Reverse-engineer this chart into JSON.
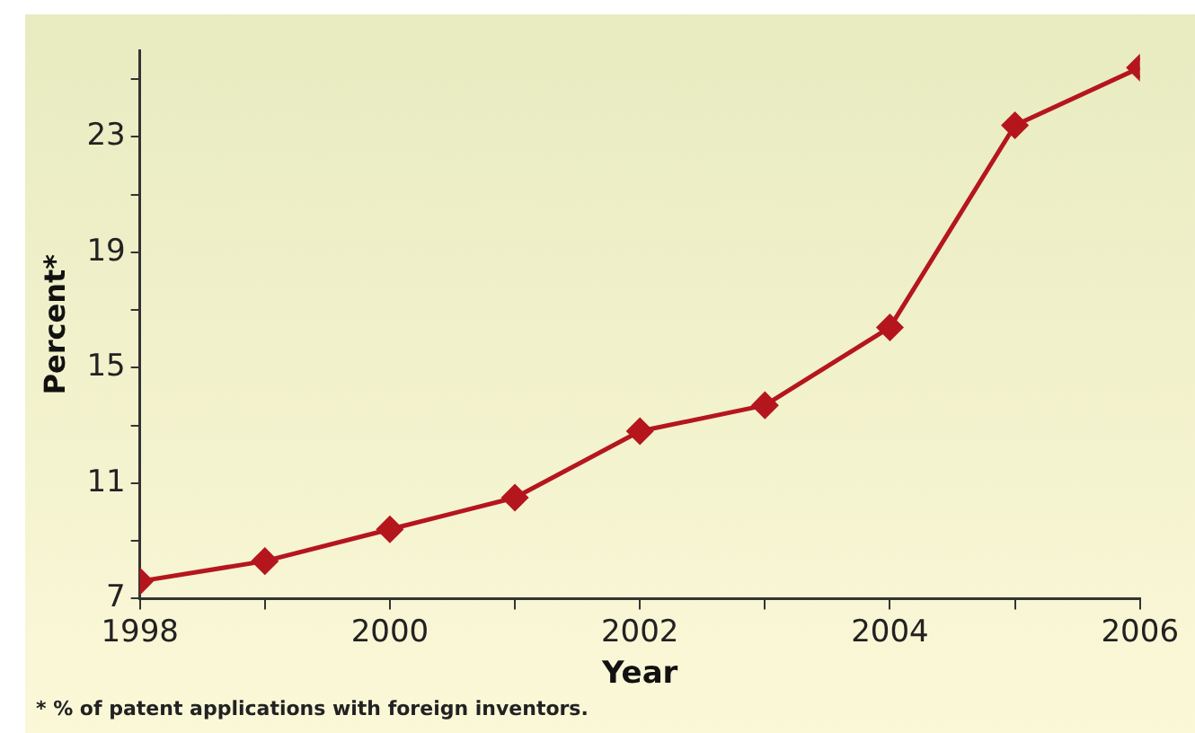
{
  "chart_data": {
    "type": "line",
    "xlabel": "Year",
    "ylabel": "Percent*",
    "x": [
      1998,
      1999,
      2000,
      2001,
      2002,
      2003,
      2004,
      2005,
      2006
    ],
    "series": [
      {
        "color": "#b5161e",
        "values": [
          7.6,
          8.3,
          9.4,
          10.5,
          12.8,
          13.7,
          16.4,
          23.4,
          25.4
        ]
      }
    ],
    "xlim": [
      1998,
      2006
    ],
    "xticks": [
      1998,
      {
        "value": 1999,
        "label": null
      },
      2000,
      {
        "value": 2001,
        "label": null
      },
      2002,
      {
        "value": 2003,
        "label": null
      },
      2004,
      {
        "value": 2005,
        "label": null
      },
      2006
    ],
    "ylim": [
      7,
      26
    ],
    "yticks": [
      7,
      {
        "value": 9,
        "label": null
      },
      11,
      {
        "value": 13,
        "label": null
      },
      15,
      {
        "value": 17,
        "label": null
      },
      19,
      {
        "value": 21,
        "label": null
      },
      23,
      {
        "value": 25,
        "label": null
      }
    ],
    "grid": false,
    "legend": false,
    "marker": "diamond",
    "line_style": "solid",
    "annotations": [
      "* % of patent applications with foreign inventors."
    ]
  }
}
